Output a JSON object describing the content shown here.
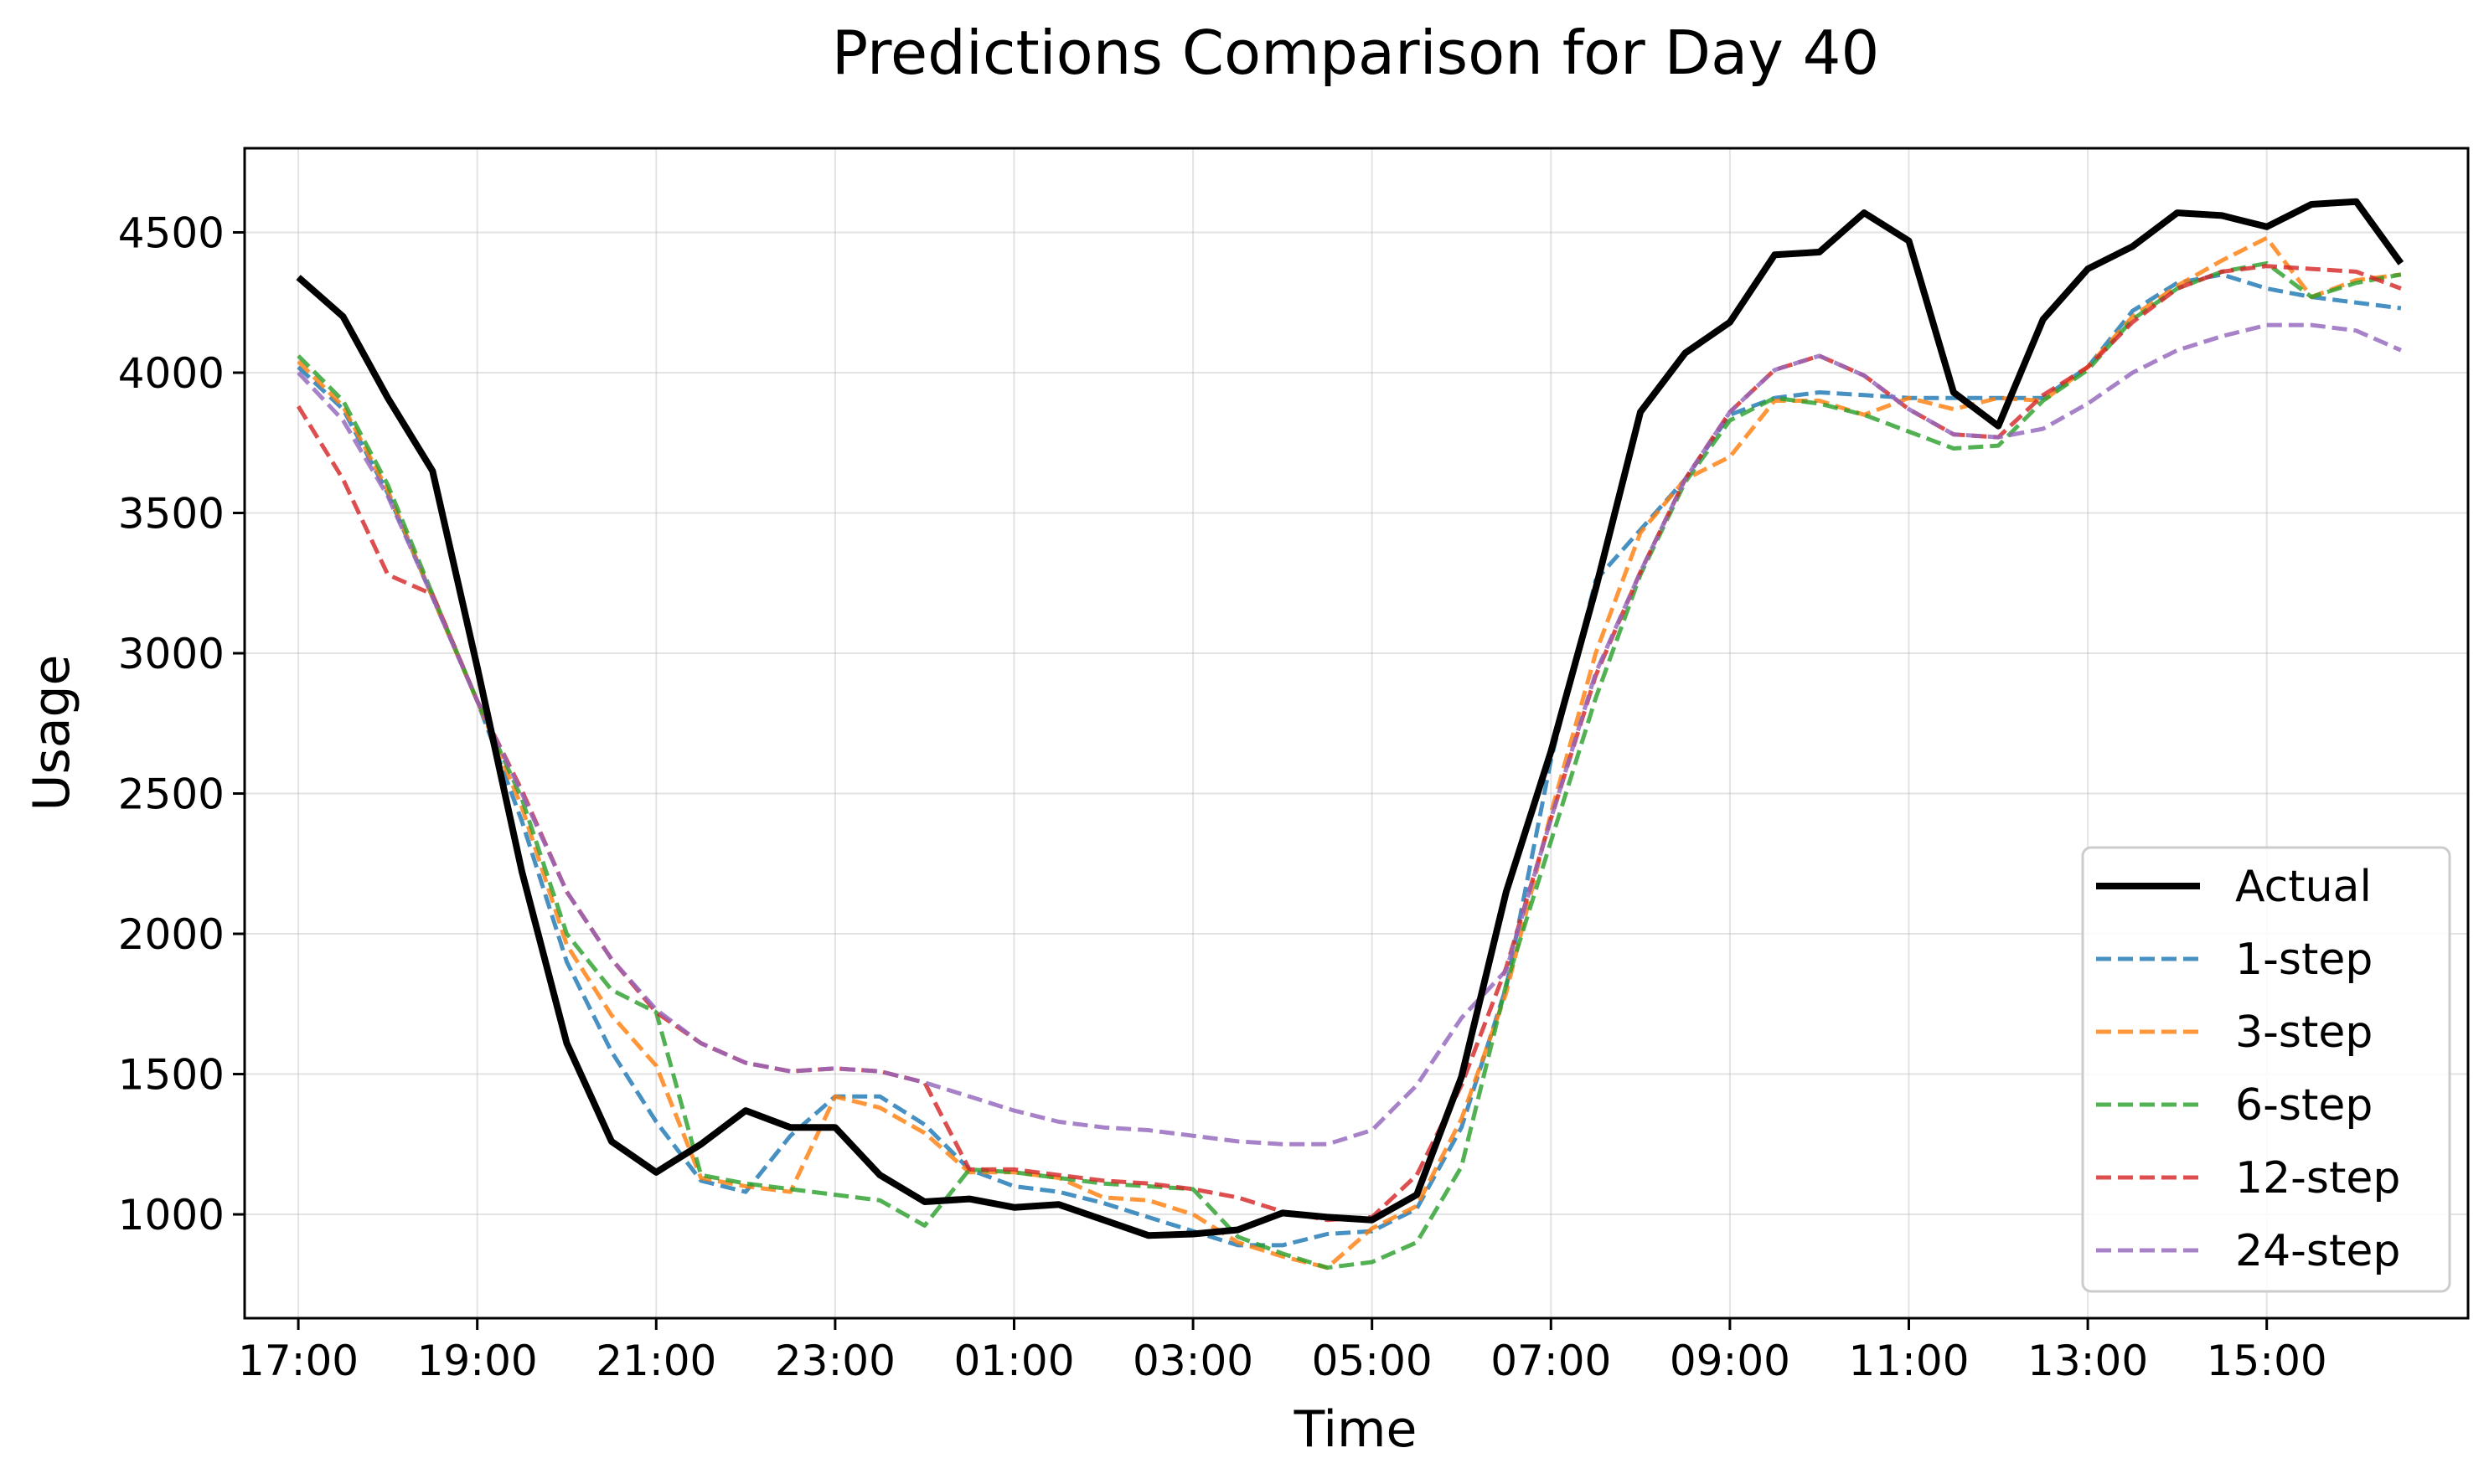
{
  "chart_data": {
    "type": "line",
    "title": "Predictions Comparison for Day 40",
    "xlabel": "Time",
    "ylabel": "Usage",
    "xticks": [
      "17:00",
      "19:00",
      "21:00",
      "23:00",
      "01:00",
      "03:00",
      "05:00",
      "07:00",
      "09:00",
      "11:00",
      "13:00",
      "15:00"
    ],
    "yticks": [
      1000,
      1500,
      2000,
      2500,
      3000,
      3500,
      4000,
      4500
    ],
    "xlim": [
      -1.2,
      48.5
    ],
    "ylim": [
      630,
      4800
    ],
    "grid": true,
    "legend_position": "lower-right",
    "x": [
      0,
      1,
      2,
      3,
      4,
      5,
      6,
      7,
      8,
      9,
      10,
      11,
      12,
      13,
      14,
      15,
      16,
      17,
      18,
      19,
      20,
      21,
      22,
      23,
      24,
      25,
      26,
      27,
      28,
      29,
      30,
      31,
      32,
      33,
      34,
      35,
      36,
      37,
      38,
      39,
      40,
      41,
      42,
      43,
      44,
      45,
      46,
      47
    ],
    "series": [
      {
        "name": "Actual",
        "color": "#000000",
        "style": "solid",
        "values": [
          4340,
          4200,
          3910,
          3650,
          2950,
          2220,
          1610,
          1260,
          1150,
          1250,
          1370,
          1310,
          1310,
          1140,
          1045,
          1055,
          1025,
          1035,
          980,
          925,
          930,
          945,
          1005,
          990,
          980,
          1070,
          1490,
          2150,
          2650,
          3230,
          3860,
          4070,
          4180,
          4420,
          4430,
          4570,
          4470,
          3930,
          3810,
          4190,
          4370,
          4450,
          4570,
          4560,
          4520,
          4600,
          4610,
          4390
        ]
      },
      {
        "name": "1-step",
        "color": "#1f77b4",
        "style": "dashed",
        "values": [
          4020,
          3870,
          3570,
          3200,
          2830,
          2400,
          1900,
          1580,
          1330,
          1120,
          1080,
          1280,
          1420,
          1420,
          1320,
          1160,
          1100,
          1080,
          1040,
          990,
          940,
          890,
          890,
          930,
          940,
          1020,
          1310,
          1810,
          2620,
          3260,
          3440,
          3620,
          3850,
          3910,
          3930,
          3920,
          3910,
          3910,
          3910,
          3910,
          4020,
          4220,
          4320,
          4350,
          4300,
          4270,
          4250,
          4230
        ]
      },
      {
        "name": "3-step",
        "color": "#ff7f0e",
        "style": "dashed",
        "values": [
          4040,
          3880,
          3580,
          3200,
          2830,
          2450,
          1960,
          1710,
          1530,
          1130,
          1100,
          1080,
          1420,
          1380,
          1290,
          1150,
          1150,
          1130,
          1060,
          1050,
          1000,
          900,
          850,
          810,
          950,
          1030,
          1340,
          1790,
          2430,
          3000,
          3430,
          3620,
          3700,
          3900,
          3900,
          3850,
          3910,
          3870,
          3910,
          3900,
          4020,
          4200,
          4310,
          4400,
          4480,
          4270,
          4330,
          4350
        ]
      },
      {
        "name": "6-step",
        "color": "#2ca02c",
        "style": "dashed",
        "values": [
          4060,
          3900,
          3600,
          3210,
          2830,
          2480,
          2000,
          1800,
          1720,
          1140,
          1110,
          1090,
          1070,
          1050,
          960,
          1160,
          1150,
          1130,
          1110,
          1100,
          1090,
          920,
          860,
          810,
          830,
          900,
          1170,
          1820,
          2330,
          2840,
          3280,
          3610,
          3830,
          3910,
          3890,
          3850,
          3790,
          3730,
          3740,
          3900,
          4010,
          4190,
          4300,
          4360,
          4390,
          4270,
          4320,
          4350
        ]
      },
      {
        "name": "12-step",
        "color": "#d62728",
        "style": "dashed",
        "values": [
          3880,
          3620,
          3280,
          3210,
          2830,
          2510,
          2150,
          1910,
          1720,
          1610,
          1540,
          1510,
          1520,
          1510,
          1470,
          1160,
          1160,
          1140,
          1120,
          1110,
          1090,
          1060,
          1010,
          980,
          990,
          1140,
          1460,
          1880,
          2410,
          2920,
          3290,
          3620,
          3860,
          4010,
          4060,
          3990,
          3870,
          3780,
          3770,
          3920,
          4020,
          4180,
          4300,
          4360,
          4380,
          4370,
          4360,
          4300
        ]
      },
      {
        "name": "24-step",
        "color": "#9467bd",
        "style": "dashed",
        "values": [
          4000,
          3830,
          3560,
          3200,
          2830,
          2500,
          2150,
          1910,
          1730,
          1610,
          1540,
          1510,
          1520,
          1510,
          1470,
          1420,
          1370,
          1330,
          1310,
          1300,
          1280,
          1260,
          1250,
          1250,
          1300,
          1460,
          1700,
          1870,
          2410,
          2930,
          3290,
          3620,
          3860,
          4010,
          4060,
          3990,
          3870,
          3780,
          3770,
          3800,
          3890,
          4000,
          4080,
          4130,
          4170,
          4170,
          4150,
          4080
        ]
      }
    ]
  }
}
